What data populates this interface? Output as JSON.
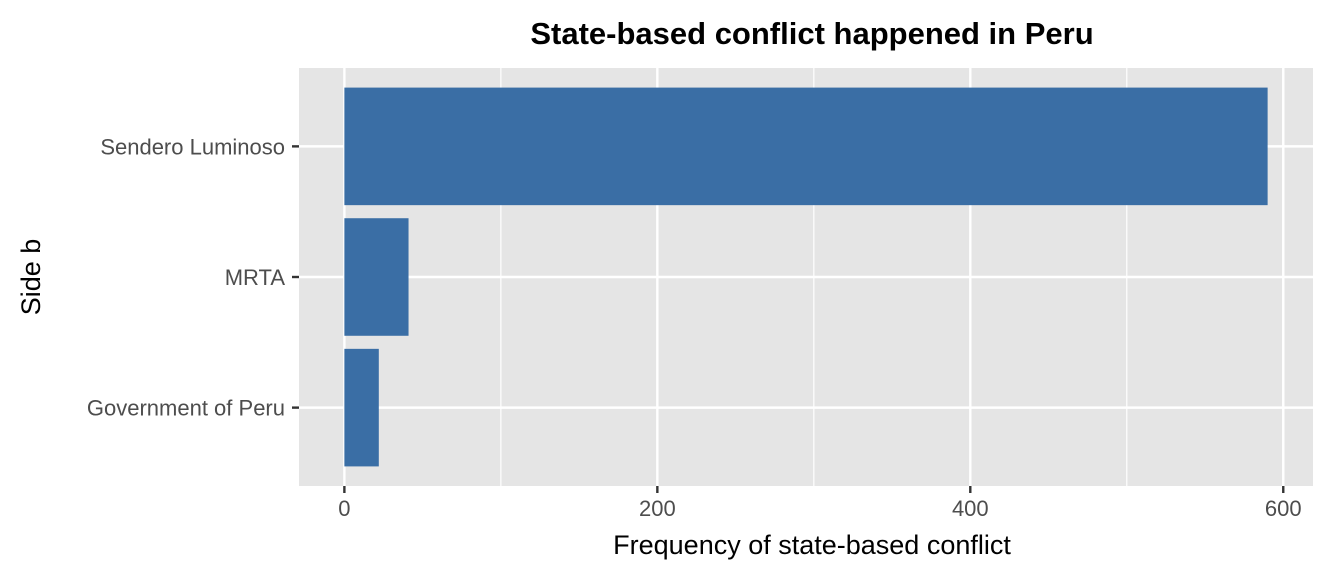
{
  "chart_data": {
    "type": "bar",
    "orientation": "horizontal",
    "title": "State-based conflict happened in Peru",
    "xlabel": "Frequency of state-based conflict",
    "ylabel": "Side b",
    "categories": [
      "Government of Peru",
      "MRTA",
      "Sendero Luminoso"
    ],
    "values": [
      22,
      41,
      590
    ],
    "xlim": [
      -29,
      619
    ],
    "x_ticks": [
      0,
      200,
      400,
      600
    ],
    "x_tick_labels": [
      "0",
      "200",
      "400",
      "600"
    ],
    "grid": true,
    "legend": "none",
    "colors": {
      "bar": "#3A6EA5",
      "panel": "#E5E5E5",
      "grid": "#FFFFFF",
      "text": "#000000",
      "tick_text": "#4D4D4D",
      "tick_mark": "#333333"
    }
  }
}
